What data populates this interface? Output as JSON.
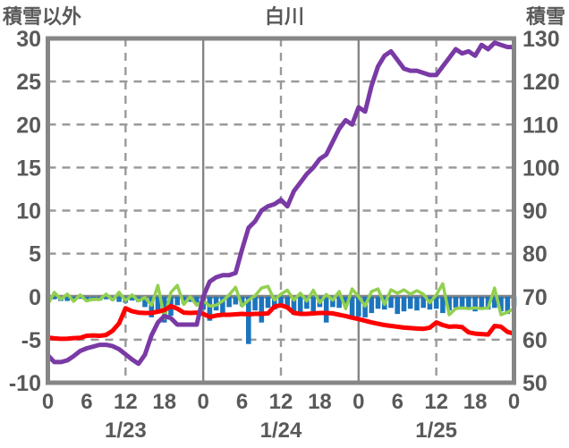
{
  "header": {
    "left_axis_title": "積雪以外",
    "chart_title": "白川",
    "right_axis_title": "積雪"
  },
  "colors": {
    "purple_line": "#7a3aa5",
    "red_line": "#ff0000",
    "green_line": "#92d050",
    "blue_bars": "#1c74bd",
    "grid": "#9a9a9a",
    "axis_frame": "#868686",
    "text": "#595959",
    "background": "#ffffff"
  },
  "chart_data": {
    "type": "line+bar",
    "title": "白川",
    "x_axis": {
      "unit": "hour",
      "start_hour": 0,
      "end_hour": 72,
      "tick_interval_hours": 6,
      "tick_labels": [
        "0",
        "6",
        "12",
        "18",
        "0",
        "6",
        "12",
        "18",
        "0",
        "6",
        "12",
        "18",
        "0"
      ],
      "date_labels": [
        "1/23",
        "1/24",
        "1/25"
      ],
      "date_label_center_hours": [
        12,
        36,
        60
      ],
      "dashed_gridline_hours": [
        12,
        36,
        60
      ],
      "solid_gridline_hours": [
        24,
        48
      ]
    },
    "left_axis": {
      "label": "積雪以外",
      "min": -10,
      "max": 30,
      "tick_step": 5,
      "ticks": [
        30,
        25,
        20,
        15,
        10,
        5,
        0,
        -5,
        -10
      ],
      "dashed_gridlines": [
        25,
        20,
        15,
        10,
        5,
        -5
      ],
      "zero_line": 0
    },
    "right_axis": {
      "label": "積雪",
      "min": 50,
      "max": 130,
      "tick_step": 10,
      "ticks": [
        130,
        120,
        110,
        100,
        90,
        80,
        70,
        60,
        50
      ]
    },
    "legend": "none",
    "series": [
      {
        "name": "blue-bars",
        "type": "bar",
        "axis": "left",
        "color": "#1c74bd",
        "start_hour": 1,
        "values": [
          -0.3,
          -0.5,
          -0.5,
          -0.35,
          -0.25,
          -0.45,
          -0.5,
          -0.45,
          -0.3,
          -0.45,
          -0.6,
          -0.7,
          -0.45,
          -0.6,
          -1.2,
          -2.4,
          -1.6,
          -3,
          -2.2,
          -1,
          -0.8,
          -0.6,
          -0.7,
          -1.5,
          -2.8,
          -1.6,
          -2.1,
          -1.2,
          -0.9,
          -1.1,
          -5.5,
          -1.6,
          -3,
          -1.3,
          -1.5,
          -1,
          -1.3,
          -2.1,
          -2.1,
          -1.4,
          -2,
          -1.2,
          -3,
          -1.2,
          -1.3,
          -1.1,
          -2.3,
          -2.3,
          -2.4,
          -1.9,
          -1.4,
          -1.5,
          -1.3,
          -2,
          -1.7,
          -1.4,
          -1.6,
          -1.3,
          -1.5,
          -1.4,
          -1.9,
          -1.6,
          -1.3,
          -1.5,
          -1.4,
          -1.7,
          -1.4,
          -1.5,
          -1.3,
          -1.7,
          -2,
          -1.1
        ]
      },
      {
        "name": "green-line",
        "type": "line",
        "axis": "left",
        "color": "#92d050",
        "width": 3.5,
        "values": [
          -0.9,
          0.5,
          -0.3,
          0.3,
          -0.55,
          0.2,
          -0.5,
          -0.3,
          -0.35,
          0.3,
          -0.4,
          0.5,
          -0.45,
          0.2,
          -0.5,
          -0.1,
          -1,
          1.3,
          -2.5,
          0.5,
          1.3,
          -0.9,
          0,
          -1,
          -0.5,
          -1.1,
          -1,
          -0.5,
          0.2,
          1.1,
          -1.1,
          -0.4,
          0.1,
          1,
          1.2,
          -0.4,
          0.3,
          0.75,
          -0.4,
          0.4,
          -0.5,
          0.75,
          -0.7,
          0.25,
          -0.4,
          0.6,
          -1.4,
          0.9,
          0,
          -1.1,
          0.6,
          0.9,
          -0.9,
          0.8,
          0.4,
          0.8,
          0.3,
          0.7,
          0.3,
          -0.7,
          0.2,
          1.5,
          -2.1,
          -1.4,
          -1.3,
          -1.4,
          -1.3,
          -1.4,
          -1.3,
          1,
          -2.1,
          -1.8,
          -1.4
        ]
      },
      {
        "name": "red-line",
        "type": "line",
        "axis": "left",
        "color": "#ff0000",
        "width": 5,
        "values": [
          -4.75,
          -4.85,
          -4.9,
          -4.88,
          -4.82,
          -4.78,
          -4.55,
          -4.5,
          -4.55,
          -4.45,
          -3.95,
          -3.1,
          -1.35,
          -1.7,
          -1.85,
          -1.9,
          -1.9,
          -1.75,
          -1.55,
          -1.1,
          -1.4,
          -1.85,
          -1.9,
          -1.85,
          -2,
          -2.35,
          -2.2,
          -2.1,
          -2.1,
          -2.05,
          -2,
          -2.05,
          -2,
          -2,
          -1.95,
          -1.15,
          -1,
          -1.25,
          -1.9,
          -2,
          -2,
          -1.95,
          -1.9,
          -1.9,
          -1.95,
          -2.1,
          -2.25,
          -2.45,
          -2.6,
          -2.8,
          -3,
          -3.15,
          -3.3,
          -3.4,
          -3.5,
          -3.6,
          -3.65,
          -3.7,
          -3.75,
          -3.6,
          -3,
          -3.3,
          -3.5,
          -3.45,
          -3.55,
          -4.15,
          -4.3,
          -4.35,
          -4.4,
          -3.4,
          -3.5,
          -4.1,
          -4.3
        ]
      },
      {
        "name": "purple-line",
        "type": "line",
        "axis": "right",
        "color": "#7a3aa5",
        "width": 5,
        "values": [
          56.4,
          54.8,
          54.8,
          55.2,
          56.2,
          57.4,
          58,
          58.4,
          58.8,
          58.8,
          58.5,
          57.8,
          56.6,
          55.4,
          54.4,
          56.5,
          61,
          64,
          65.5,
          65,
          63.5,
          63.5,
          63.5,
          63.5,
          70,
          73.5,
          74.5,
          75,
          75,
          75.5,
          81,
          86,
          87.5,
          90,
          91,
          91.5,
          92.5,
          91,
          94.5,
          96.5,
          98.5,
          100,
          102,
          103,
          106,
          109,
          111,
          110,
          114,
          113,
          119,
          123.5,
          126,
          127,
          125,
          123,
          122.5,
          122.5,
          122,
          121.5,
          121.5,
          123.5,
          125.5,
          127.5,
          126.5,
          127,
          126,
          128.5,
          127.5,
          129,
          128.5,
          128,
          128
        ]
      }
    ]
  }
}
